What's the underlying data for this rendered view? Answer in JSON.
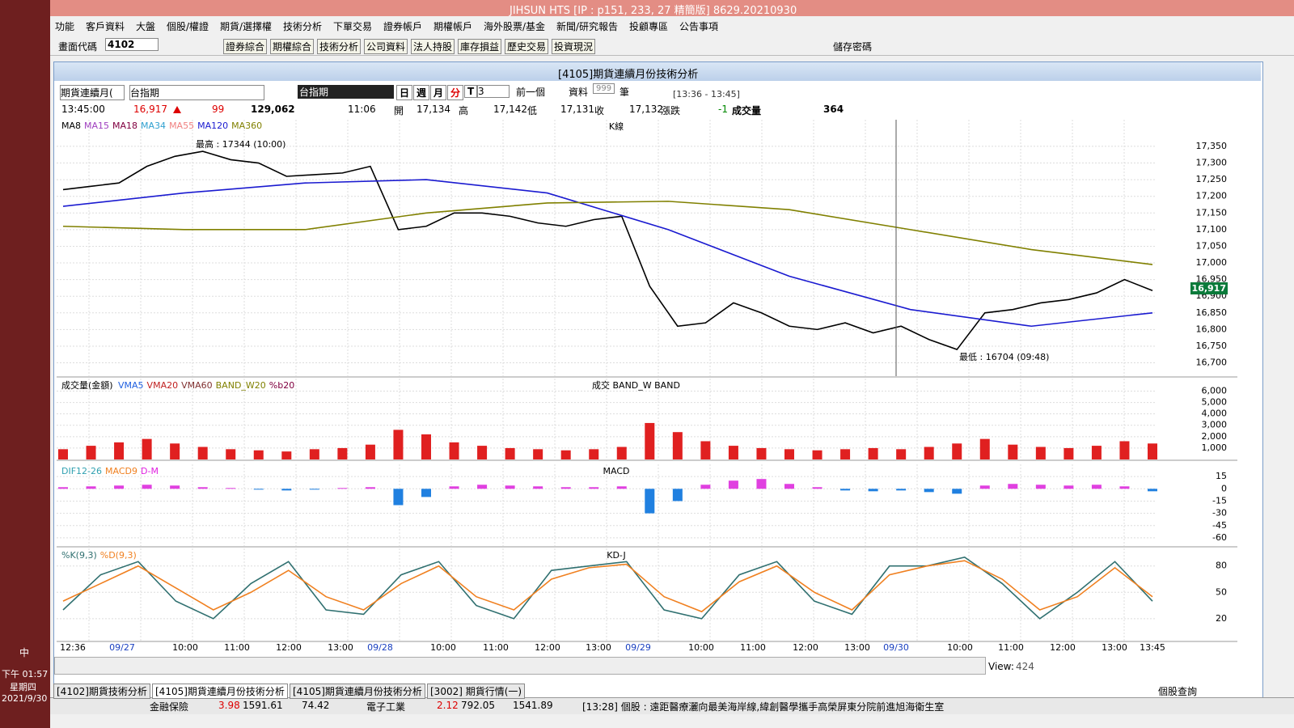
{
  "window": {
    "title": "JIHSUN HTS    [IP : p151, 233, 27 精簡版] 8629.20210930"
  },
  "menu": [
    "功能",
    "客戶資料",
    "大盤",
    "個股/權證",
    "期貨/選擇權",
    "技術分析",
    "下單交易",
    "證券帳戶",
    "期權帳戶",
    "海外股票/基金",
    "新聞/研究報告",
    "投顧專區",
    "公告事項"
  ],
  "toolbar": {
    "code_label": "畫面代碼",
    "code": "4102",
    "buttons": [
      "證券綜合",
      "期權綜合",
      "技術分析",
      "公司資料",
      "法人持股",
      "庫存損益",
      "歷史交易",
      "投資現況"
    ],
    "save_password": "儲存密碼"
  },
  "panel": {
    "title": "[4105]期貨連續月份技術分析",
    "selector": "期貨連續月(",
    "symbol": "台指期",
    "symbol_name": "台指期",
    "periods": [
      "日",
      "週",
      "月",
      "分",
      "T"
    ],
    "period_n": "3",
    "prev": "前一個",
    "data_label": "資料",
    "data_count": "999",
    "unit": "筆",
    "range": "[13:36 - 13:45]"
  },
  "quote": {
    "time": "13:45:00",
    "price": "16,917",
    "change": "99",
    "volume": "129,062",
    "bar_time": "11:06",
    "open_label": "開",
    "open": "17,134",
    "high_label": "高",
    "high": "17,142",
    "low_label": "低",
    "low": "17,131",
    "close_label": "收",
    "close": "17,132",
    "chg_label": "漲跌",
    "chg": "-1",
    "vol_label": "成交量",
    "vol": "364"
  },
  "time_axis": [
    "12:36",
    "09/27",
    "10:00",
    "11:00",
    "12:00",
    "13:00",
    "09/28",
    "10:00",
    "11:00",
    "12:00",
    "13:00",
    "09/29",
    "10:00",
    "11:00",
    "12:00",
    "13:00",
    "09/30",
    "10:00",
    "11:00",
    "12:00",
    "13:00",
    "13:45"
  ],
  "chart_data": [
    {
      "type": "line",
      "title": "K線",
      "ylim": [
        16660,
        17430
      ],
      "yticks": [
        {
          "value": 17350,
          "label": "17,350"
        },
        {
          "value": 17300,
          "label": "17,300"
        },
        {
          "value": 17250,
          "label": "17,250"
        },
        {
          "value": 17200,
          "label": "17,200"
        },
        {
          "value": 17150,
          "label": "17,150"
        },
        {
          "value": 17100,
          "label": "17,100"
        },
        {
          "value": 17050,
          "label": "17,050"
        },
        {
          "value": 17000,
          "label": "17,000"
        },
        {
          "value": 16950,
          "label": "16,950"
        },
        {
          "value": 16900,
          "label": "16,900"
        },
        {
          "value": 16850,
          "label": "16,850"
        },
        {
          "value": 16800,
          "label": "16,800"
        },
        {
          "value": 16750,
          "label": "16,750"
        },
        {
          "value": 16700,
          "label": "16,700"
        }
      ],
      "series": [
        {
          "name": "MA8",
          "color": "#000000",
          "values": [
            17220,
            17230,
            17240,
            17290,
            17320,
            17335,
            17310,
            17300,
            17260,
            17265,
            17270,
            17290,
            17100,
            17110,
            17150,
            17150,
            17140,
            17120,
            17110,
            17130,
            17140,
            16930,
            16810,
            16820,
            16880,
            16850,
            16810,
            16800,
            16820,
            16790,
            16810,
            16770,
            16740,
            16850,
            16860,
            16880,
            16890,
            16910,
            16950,
            16917
          ]
        },
        {
          "name": "MA15",
          "color": "#a040c0"
        },
        {
          "name": "MA18",
          "color": "#800040"
        },
        {
          "name": "MA34",
          "color": "#30a0d0"
        },
        {
          "name": "MA55",
          "color": "#f08080"
        },
        {
          "name": "MA120",
          "color": "#1a1ad0",
          "values": [
            17170,
            17210,
            17240,
            17250,
            17210,
            17100,
            16960,
            16860,
            16810,
            16850
          ]
        },
        {
          "name": "MA360",
          "color": "#808000",
          "values": [
            17110,
            17100,
            17100,
            17150,
            17180,
            17185,
            17160,
            17100,
            17040,
            16995
          ]
        }
      ],
      "annotations": [
        "最高 : 17344 (10:00)",
        "最低 : 16704 (09:48)"
      ]
    },
    {
      "type": "bar",
      "title": "成交量(金額)",
      "label": "成交  BAND_W  BAND",
      "color": "#e02020",
      "ylim": [
        0,
        7100
      ],
      "yticks": [
        {
          "value": 6000,
          "label": "6,000"
        },
        {
          "value": 5000,
          "label": "5,000"
        },
        {
          "value": 4000,
          "label": "4,000"
        },
        {
          "value": 3000,
          "label": "3,000"
        },
        {
          "value": 2000,
          "label": "2,000"
        },
        {
          "value": 1000,
          "label": "1,000"
        }
      ],
      "legend": [
        {
          "name": "VMA5",
          "color": "#2060e0"
        },
        {
          "name": "VMA20",
          "color": "#c02020"
        },
        {
          "name": "VMA60",
          "color": "#803030"
        },
        {
          "name": "BAND_W20",
          "color": "#808000"
        },
        {
          "name": "%b20",
          "color": "#800040"
        }
      ],
      "values": [
        900,
        1200,
        1500,
        1800,
        1400,
        1100,
        900,
        800,
        700,
        900,
        1000,
        1300,
        2600,
        2200,
        1500,
        1200,
        1000,
        900,
        800,
        900,
        1100,
        3200,
        2400,
        1600,
        1200,
        1000,
        900,
        800,
        900,
        1000,
        900,
        1100,
        1400,
        1800,
        1300,
        1100,
        1000,
        1200,
        1600,
        1400
      ]
    },
    {
      "type": "bar",
      "title": "MACD",
      "color": "#2080e0",
      "ylim": [
        -70,
        30
      ],
      "yticks": [
        15,
        0,
        -15,
        -30,
        -45,
        -60
      ],
      "legend": [
        {
          "name": "DIF12-26",
          "color": "#30a0b0"
        },
        {
          "name": "MACD9",
          "color": "#f08020"
        },
        {
          "name": "D-M",
          "color": "#e020e0"
        }
      ],
      "values": [
        2,
        3,
        4,
        5,
        4,
        2,
        1,
        -1,
        -2,
        -1,
        1,
        2,
        -20,
        -10,
        3,
        5,
        4,
        3,
        2,
        2,
        3,
        -30,
        -15,
        5,
        10,
        12,
        6,
        2,
        -2,
        -3,
        -2,
        -4,
        -6,
        4,
        6,
        5,
        4,
        5,
        3,
        -3
      ]
    },
    {
      "type": "line",
      "title": "KD-J",
      "ylim": [
        -5,
        100
      ],
      "yticks": [
        80,
        50,
        20
      ],
      "series": [
        {
          "name": "%K(9,3)",
          "color": "#307070",
          "values": [
            30,
            70,
            85,
            40,
            20,
            60,
            85,
            30,
            25,
            70,
            85,
            35,
            20,
            75,
            80,
            85,
            30,
            20,
            70,
            85,
            40,
            25,
            80,
            80,
            90,
            60,
            20,
            50,
            85,
            40
          ]
        },
        {
          "name": "%D(9,3)",
          "color": "#f08020",
          "values": [
            40,
            60,
            80,
            55,
            30,
            50,
            75,
            45,
            30,
            60,
            80,
            45,
            30,
            65,
            78,
            82,
            45,
            28,
            62,
            80,
            50,
            30,
            70,
            80,
            86,
            65,
            30,
            45,
            78,
            45
          ]
        }
      ]
    }
  ],
  "status": {
    "tabs": [
      "[4102]期貨技術分析",
      "[4105]期貨連續月份技術分析",
      "[4105]期貨連續月份技術分析",
      "[3002] 期貨行情(一)"
    ],
    "query": "個股查詢",
    "view_label": "View:",
    "view": "424"
  },
  "ticker": {
    "s1": "金融保險",
    "c1": "3.98",
    "p1": "1591.61",
    "v1": "74.42",
    "s2": "電子工業",
    "c2": "2.12",
    "p2": "792.05",
    "v2": "1541.89",
    "news": "[13:28]  個股 : 遠距醫療灑向最美海岸線,緯創醫學攜手高榮屏東分院前進旭海衛生室"
  },
  "taskbar": {
    "ime": "中",
    "time": "下午 01:57",
    "weekday": "星期四",
    "date": "2021/9/30"
  }
}
